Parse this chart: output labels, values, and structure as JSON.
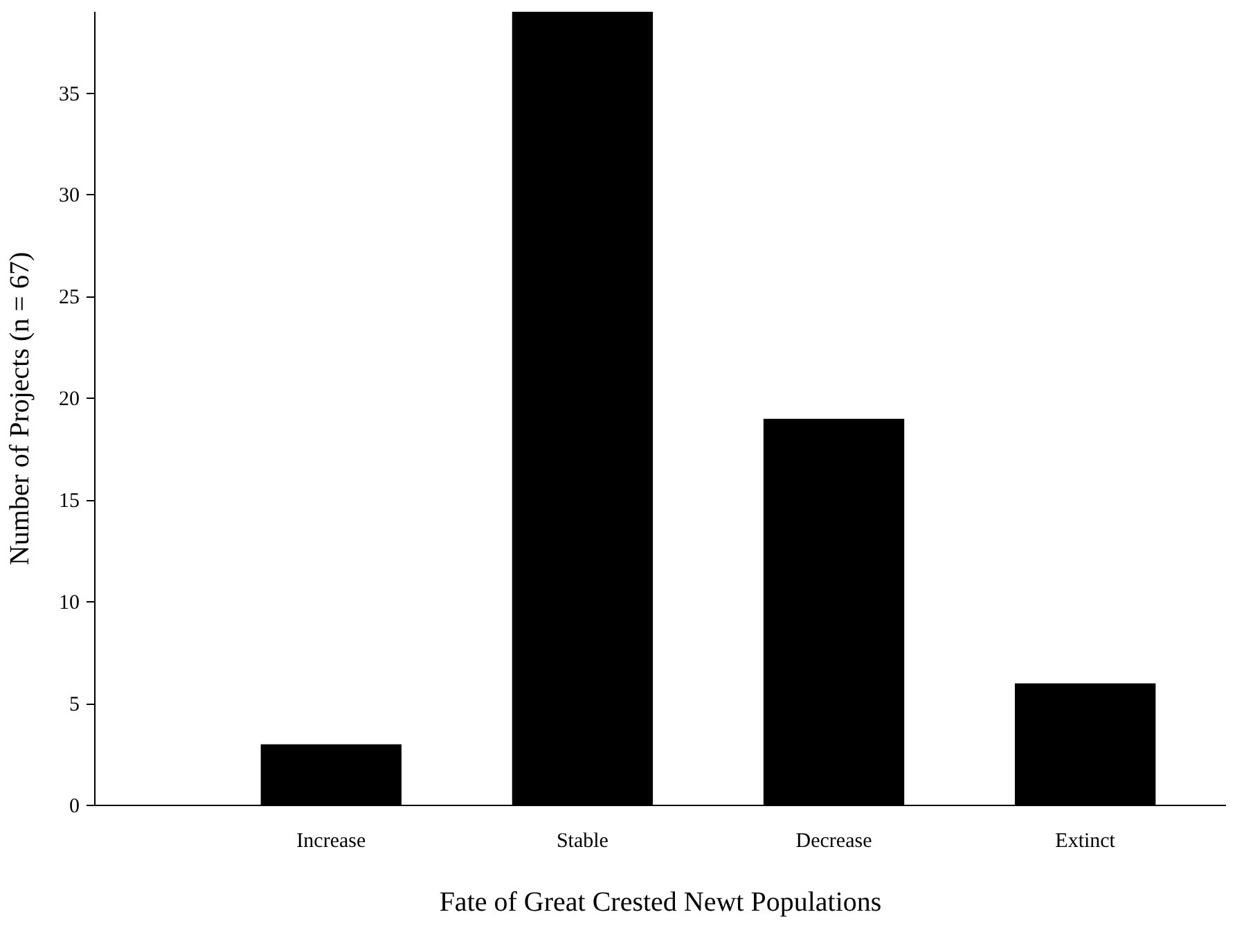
{
  "chart_data": {
    "type": "bar",
    "xlabel": "Fate of Great Crested Newt Populations",
    "ylabel": "Number of Projects (n = 67)",
    "categories": [
      "Increase",
      "Stable",
      "Decrease",
      "Extinct"
    ],
    "values": [
      3,
      39,
      19,
      6
    ],
    "color": "#000000",
    "ylim": [
      0,
      39
    ],
    "yticks": [
      0,
      5,
      10,
      15,
      20,
      25,
      30,
      35
    ],
    "grid": false
  }
}
